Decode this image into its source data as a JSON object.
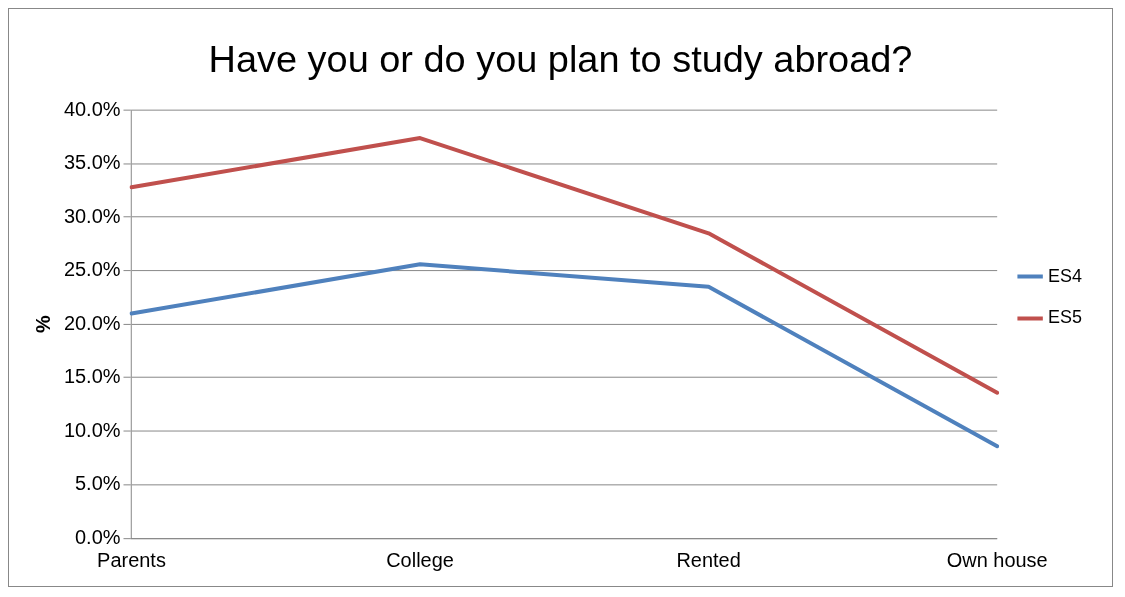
{
  "chart_data": {
    "type": "line",
    "title": "Have you or do you plan to study abroad?",
    "ylabel": "%",
    "categories": [
      "Parents",
      "College",
      "Rented",
      "Own house"
    ],
    "series": [
      {
        "name": "ES4",
        "color": "#4f81bd",
        "values": [
          21.0,
          25.6,
          23.5,
          8.6
        ]
      },
      {
        "name": "ES5",
        "color": "#c0504d",
        "values": [
          32.8,
          37.4,
          28.5,
          13.6
        ]
      }
    ],
    "ylim": [
      0,
      40
    ],
    "yticks": [
      {
        "value": 0,
        "label": "0.0%"
      },
      {
        "value": 5,
        "label": "5.0%"
      },
      {
        "value": 10,
        "label": "10.0%"
      },
      {
        "value": 15,
        "label": "15.0%"
      },
      {
        "value": 20,
        "label": "20.0%"
      },
      {
        "value": 25,
        "label": "25.0%"
      },
      {
        "value": 30,
        "label": "30.0%"
      },
      {
        "value": 35,
        "label": "35.0%"
      },
      {
        "value": 40,
        "label": "40.0%"
      }
    ],
    "grid": "y",
    "legend": "right",
    "marker": "none",
    "line_style": "solid"
  }
}
